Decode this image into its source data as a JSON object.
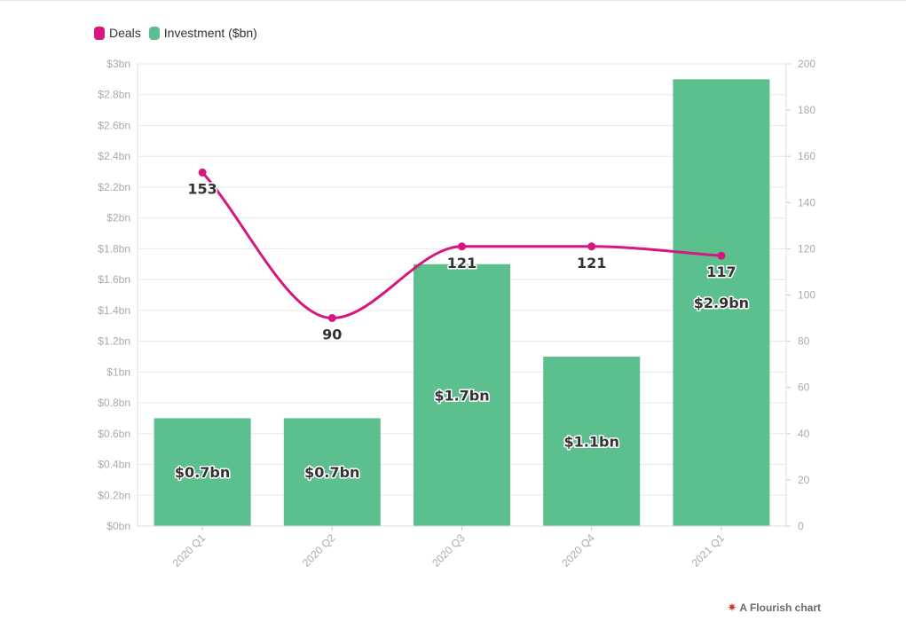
{
  "chart_data": {
    "type": "bar",
    "categories": [
      "2020 Q1",
      "2020 Q2",
      "2020 Q3",
      "2020 Q4",
      "2021 Q1"
    ],
    "series": [
      {
        "name": "Deals",
        "type": "line",
        "axis": "right",
        "values": [
          153,
          90,
          121,
          121,
          117
        ],
        "labels": [
          "153",
          "90",
          "121",
          "121",
          "117"
        ],
        "color": "#d6187e"
      },
      {
        "name": "Investment ($bn)",
        "type": "bar",
        "axis": "left",
        "values": [
          0.7,
          0.7,
          1.7,
          1.1,
          2.9
        ],
        "labels": [
          "$0.7bn",
          "$0.7bn",
          "$1.7bn",
          "$1.1bn",
          "$2.9bn"
        ],
        "color": "#5bbf8e"
      }
    ],
    "y_left": {
      "range": [
        0,
        3
      ],
      "ticks": [
        0,
        0.2,
        0.4,
        0.6,
        0.8,
        1,
        1.2,
        1.4,
        1.6,
        1.8,
        2,
        2.2,
        2.4,
        2.6,
        2.8,
        3
      ],
      "tick_labels": [
        "$0bn",
        "$0.2bn",
        "$0.4bn",
        "$0.6bn",
        "$0.8bn",
        "$1bn",
        "$1.2bn",
        "$1.4bn",
        "$1.6bn",
        "$1.8bn",
        "$2bn",
        "$2.2bn",
        "$2.4bn",
        "$2.6bn",
        "$2.8bn",
        "$3bn"
      ]
    },
    "y_right": {
      "range": [
        0,
        200
      ],
      "ticks": [
        0,
        20,
        40,
        60,
        80,
        100,
        120,
        140,
        160,
        180,
        200
      ],
      "tick_labels": [
        "0",
        "20",
        "40",
        "60",
        "80",
        "100",
        "120",
        "140",
        "160",
        "180",
        "200"
      ]
    },
    "grid": true,
    "legend_position": "top-left"
  },
  "legend": {
    "deals_label": "Deals",
    "investment_label": "Investment ($bn)",
    "deals_color": "#d6187e",
    "investment_color": "#5bbf8e"
  },
  "credit": {
    "text": "A Flourish chart"
  }
}
